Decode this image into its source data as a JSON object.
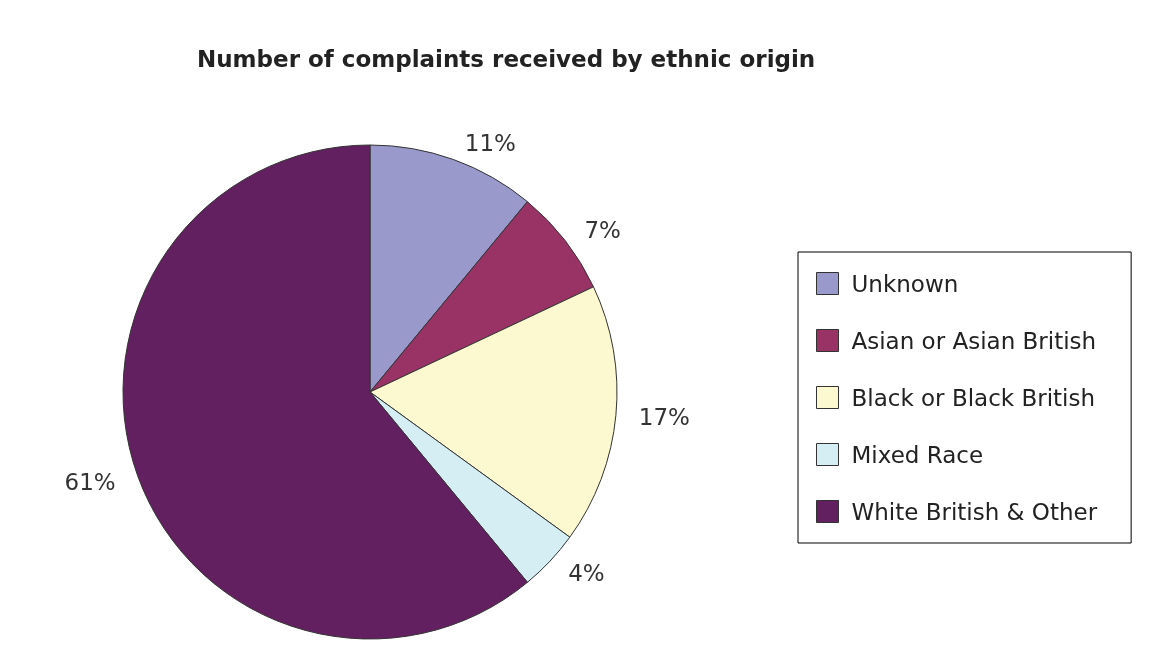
{
  "chart_data": {
    "type": "pie",
    "title": "Number of complaints received by ethnic origin",
    "categories": [
      "Unknown",
      "Asian or Asian British",
      "Black or Black British",
      "Mixed Race",
      "White British & Other"
    ],
    "values": [
      11,
      7,
      17,
      4,
      61
    ],
    "value_labels": [
      "11%",
      "7%",
      "17%",
      "4%",
      "61%"
    ],
    "colors": [
      "#9999cc",
      "#993366",
      "#fcf8d0",
      "#d5eef3",
      "#632060"
    ],
    "legend": "right"
  }
}
